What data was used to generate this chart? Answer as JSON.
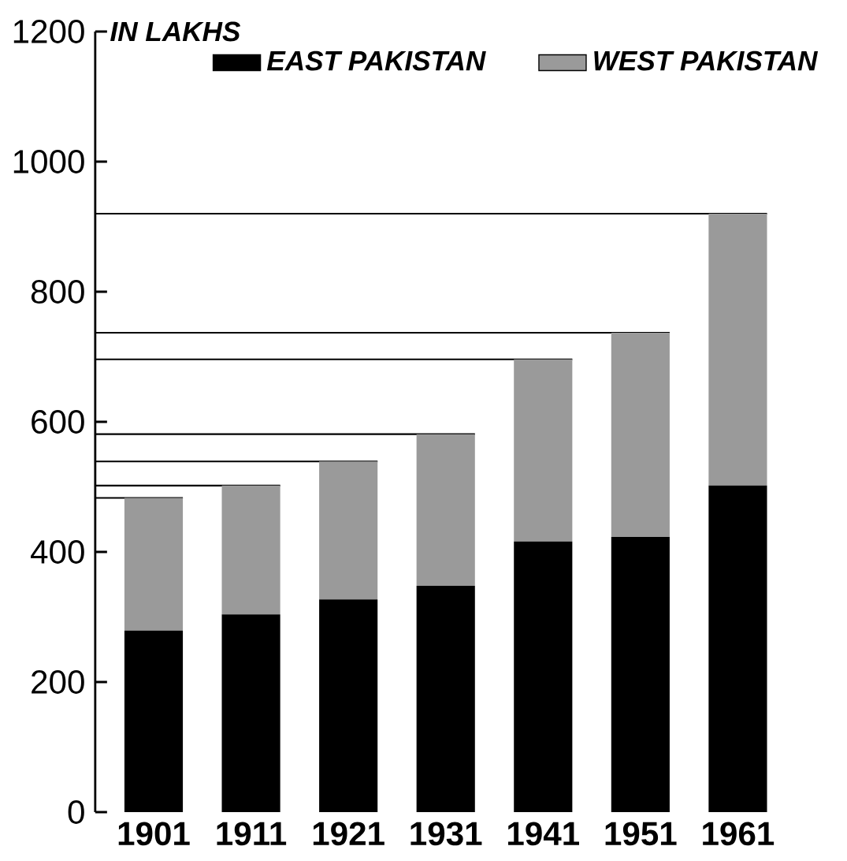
{
  "chart_data": {
    "type": "bar",
    "stacked": true,
    "ylabel": "IN LAKHS",
    "categories": [
      "1901",
      "1911",
      "1921",
      "1931",
      "1941",
      "1951",
      "1961"
    ],
    "series": [
      {
        "name": "EAST PAKISTAN",
        "color": "#000000",
        "values": [
          279,
          304,
          327,
          348,
          416,
          423,
          502
        ]
      },
      {
        "name": "WEST PAKISTAN",
        "color": "#9a9a9a",
        "values": [
          204,
          198,
          212,
          233,
          280,
          314,
          418
        ]
      }
    ],
    "ylim": [
      0,
      1200
    ],
    "yticks": [
      0,
      200,
      400,
      600,
      800,
      1000,
      1200
    ],
    "ref_lines": [
      {
        "axis": "y",
        "value": 483,
        "color": "#000000"
      },
      {
        "axis": "y",
        "value": 502,
        "color": "#000000"
      },
      {
        "axis": "y",
        "value": 539,
        "color": "#000000"
      },
      {
        "axis": "y",
        "value": 581,
        "color": "#000000"
      },
      {
        "axis": "y",
        "value": 696,
        "color": "#000000"
      },
      {
        "axis": "y",
        "value": 737,
        "color": "#000000"
      },
      {
        "axis": "y",
        "value": 920,
        "color": "#000000"
      }
    ],
    "legend": "top",
    "grid": false
  }
}
